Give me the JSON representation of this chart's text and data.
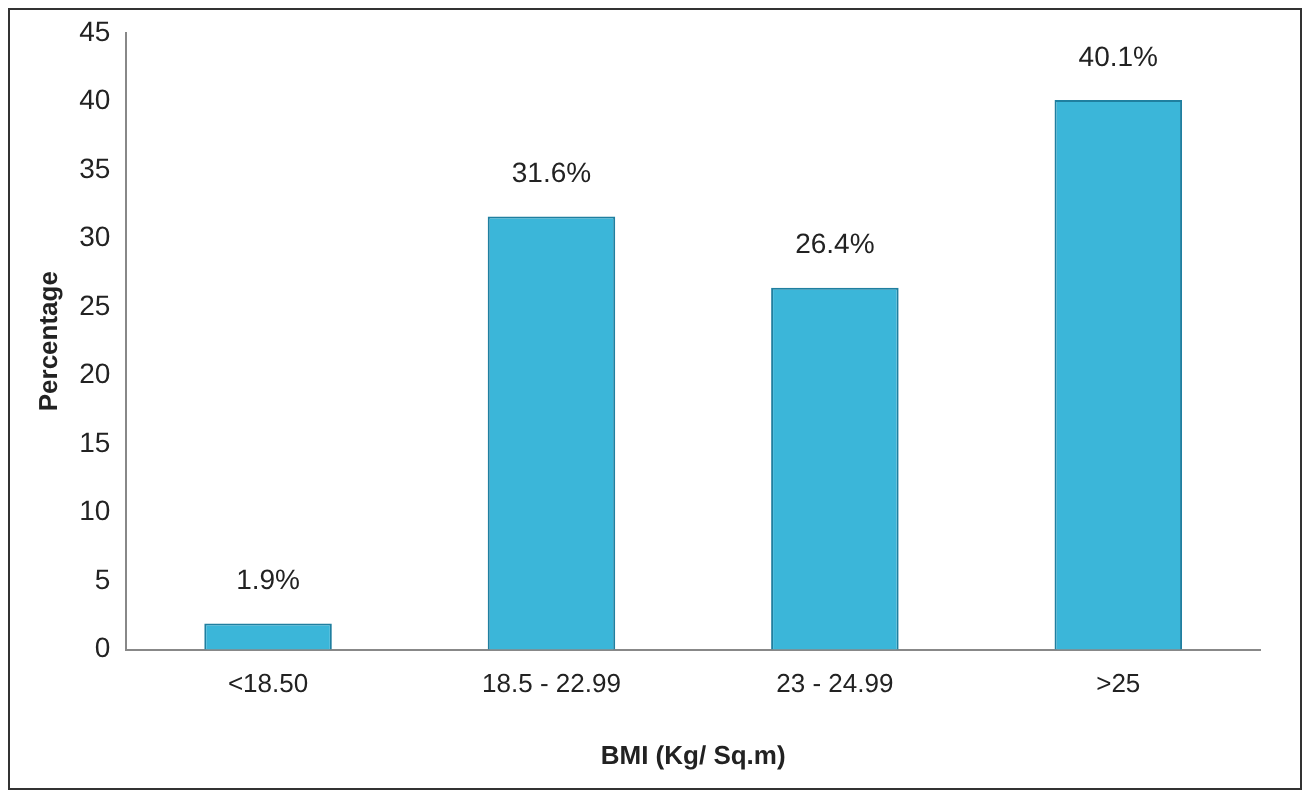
{
  "chart_data": {
    "type": "bar",
    "xlabel": "BMI (Kg/ Sq.m)",
    "ylabel": "Percentage",
    "categories": [
      "<18.50",
      "18.5 - 22.99",
      "23 - 24.99",
      ">25"
    ],
    "values": [
      1.9,
      31.6,
      26.4,
      40.1
    ],
    "value_labels": [
      "1.9%",
      "31.6%",
      "26.4%",
      "40.1%"
    ],
    "color": "#3bb6d9",
    "ylim": [
      0,
      45
    ],
    "yticks": [
      0,
      5,
      10,
      15,
      20,
      25,
      30,
      35,
      40,
      45
    ],
    "grid": false
  }
}
